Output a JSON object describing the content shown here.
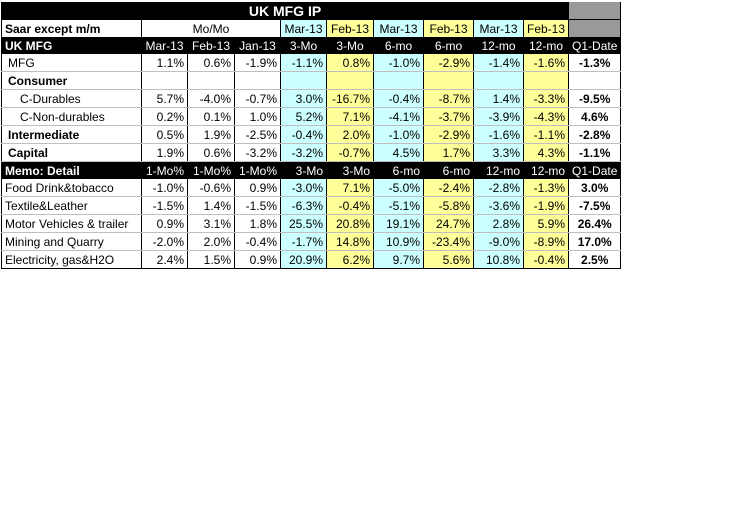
{
  "title": "UK MFG IP",
  "subheader": {
    "label": "Saar except m/m",
    "momo": "Mo/Mo",
    "groups": [
      "Mar-13",
      "Feb-13",
      "Mar-13",
      "Feb-13",
      "Mar-13",
      "Feb-13"
    ]
  },
  "header": {
    "label": "UK MFG",
    "cols": [
      "Mar-13",
      "Feb-13",
      "Jan-13",
      "3-Mo",
      "3-Mo",
      "6-mo",
      "6-mo",
      "12-mo",
      "12-mo",
      "Q1-Date"
    ]
  },
  "rows": [
    {
      "label": "MFG",
      "values": [
        "1.1%",
        "0.6%",
        "-1.9%",
        "-1.1%",
        "0.8%",
        "-1.0%",
        "-2.9%",
        "-1.4%",
        "-1.6%",
        "-1.3%"
      ]
    },
    {
      "label": "Consumer",
      "values": [
        "",
        "",
        "",
        "",
        "",
        "",
        "",
        "",
        "",
        ""
      ]
    },
    {
      "label": "C-Durables",
      "values": [
        "5.7%",
        "-4.0%",
        "-0.7%",
        "3.0%",
        "-16.7%",
        "-0.4%",
        "-8.7%",
        "1.4%",
        "-3.3%",
        "-9.5%"
      ]
    },
    {
      "label": "C-Non-durables",
      "values": [
        "0.2%",
        "0.1%",
        "1.0%",
        "5.2%",
        "7.1%",
        "-4.1%",
        "-3.7%",
        "-3.9%",
        "-4.3%",
        "4.6%"
      ]
    },
    {
      "label": "Intermediate",
      "values": [
        "0.5%",
        "1.9%",
        "-2.5%",
        "-0.4%",
        "2.0%",
        "-1.0%",
        "-2.9%",
        "-1.6%",
        "-1.1%",
        "-2.8%"
      ]
    },
    {
      "label": "Capital",
      "values": [
        "1.9%",
        "0.6%",
        "-3.2%",
        "-3.2%",
        "-0.7%",
        "4.5%",
        "1.7%",
        "3.3%",
        "4.3%",
        "-1.1%"
      ]
    }
  ],
  "memo": {
    "label": "Memo: Detail",
    "cols": [
      "1-Mo%",
      "1-Mo%",
      "1-Mo%",
      "3-Mo",
      "3-Mo",
      "6-mo",
      "6-mo",
      "12-mo",
      "12-mo",
      "Q1-Date"
    ]
  },
  "memo_rows": [
    {
      "label": "Food Drink&tobacco",
      "values": [
        "-1.0%",
        "-0.6%",
        "0.9%",
        "-3.0%",
        "7.1%",
        "-5.0%",
        "-2.4%",
        "-2.8%",
        "-1.3%",
        "3.0%"
      ]
    },
    {
      "label": "Textile&Leather",
      "values": [
        "-1.5%",
        "1.4%",
        "-1.5%",
        "-6.3%",
        "-0.4%",
        "-5.1%",
        "-5.8%",
        "-3.6%",
        "-1.9%",
        "-7.5%"
      ]
    },
    {
      "label": "Motor Vehicles & trailer",
      "values": [
        "0.9%",
        "3.1%",
        "1.8%",
        "25.5%",
        "20.8%",
        "19.1%",
        "24.7%",
        "2.8%",
        "5.9%",
        "26.4%"
      ]
    },
    {
      "label": "Mining and Quarry",
      "values": [
        "-2.0%",
        "2.0%",
        "-0.4%",
        "-1.7%",
        "14.8%",
        "10.9%",
        "-23.4%",
        "-9.0%",
        "-8.9%",
        "17.0%"
      ]
    },
    {
      "label": "Electricity, gas&H2O",
      "values": [
        "2.4%",
        "1.5%",
        "0.9%",
        "20.9%",
        "6.2%",
        "9.7%",
        "5.6%",
        "10.8%",
        "-0.4%",
        "2.5%"
      ]
    }
  ],
  "colors": {
    "cyan": "#ccffff",
    "yellow": "#ffff99",
    "header": "#000000",
    "gray": "#999999"
  }
}
